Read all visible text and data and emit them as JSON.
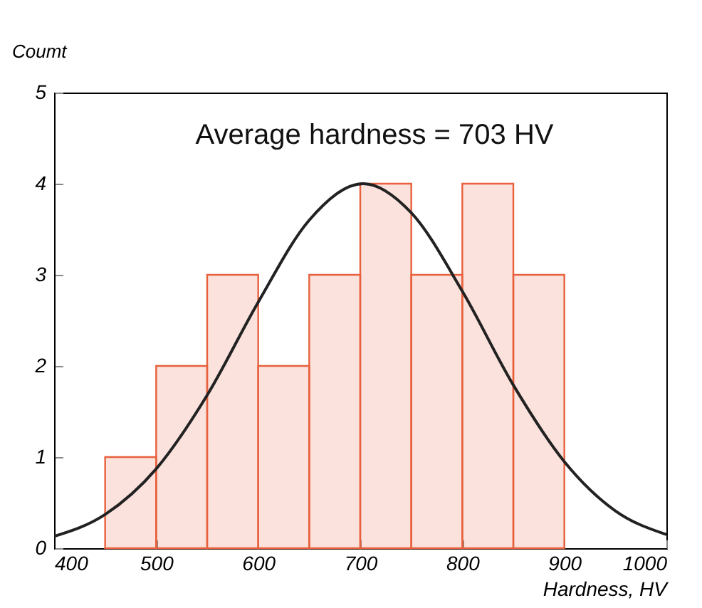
{
  "chart_data": {
    "type": "histogram",
    "xlabel": "Hardness, HV",
    "ylabel": "Coumt",
    "annotations": [
      "Average hardness = 703 HV"
    ],
    "bins": [
      450,
      500,
      550,
      600,
      650,
      700,
      750,
      800,
      850,
      900
    ],
    "values": [
      1,
      2,
      3,
      2,
      3,
      4,
      3,
      4,
      3
    ],
    "color": "#e8603c",
    "series": [
      {
        "type": "line",
        "color": "#222222",
        "x": [
          400,
          450,
          500,
          550,
          600,
          650,
          703,
          750,
          800,
          850,
          900,
          950,
          1000
        ],
        "values": [
          0.13,
          0.37,
          0.87,
          1.68,
          2.7,
          3.6,
          4,
          3.68,
          2.82,
          1.79,
          0.95,
          0.41,
          0.15
        ]
      }
    ],
    "xlim": [
      400,
      1000
    ],
    "ylim": [
      0,
      5
    ],
    "xticks": [
      400,
      500,
      600,
      700,
      800,
      900,
      1000
    ],
    "yticks": [
      0,
      1,
      2,
      3,
      4,
      5
    ],
    "grid": false
  }
}
